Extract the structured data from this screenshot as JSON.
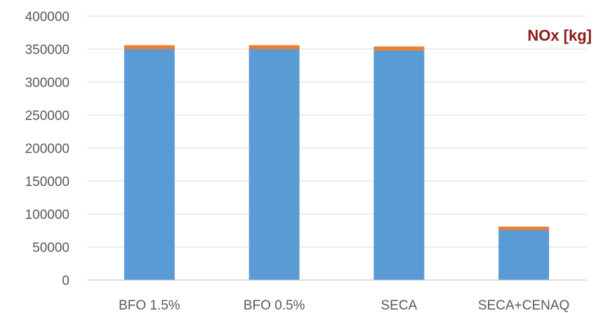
{
  "chart_data": {
    "type": "bar",
    "stacked": true,
    "title": "NOx [kg]",
    "title_color": "#8b1a1a",
    "xlabel": "",
    "ylabel": "",
    "categories": [
      "BFO 1.5%",
      "BFO 0.5%",
      "SECA",
      "SECA+CENAQ"
    ],
    "series": [
      {
        "color": "#5b9bd5",
        "values": [
          350000,
          350000,
          348000,
          76000
        ]
      },
      {
        "color": "#ed7d31",
        "values": [
          6000,
          6000,
          6000,
          5000
        ]
      }
    ],
    "ylim": [
      0,
      400000
    ],
    "yticks": [
      "0",
      "50000",
      "100000",
      "150000",
      "200000",
      "250000",
      "300000",
      "350000",
      "400000"
    ],
    "grid": true,
    "legend": "none"
  }
}
